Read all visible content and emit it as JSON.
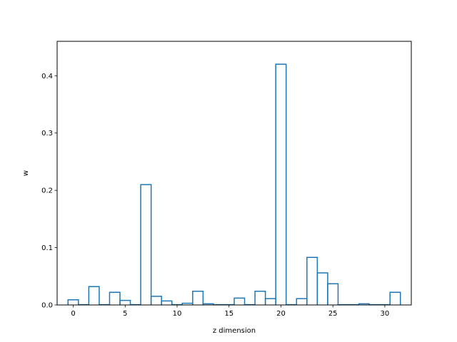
{
  "chart_data": {
    "type": "bar",
    "style": "step-histogram",
    "xlabel": "z dimension",
    "ylabel": "w",
    "xlim": [
      -1.55,
      32.55
    ],
    "ylim": [
      0,
      0.46
    ],
    "xticks": [
      0,
      5,
      10,
      15,
      20,
      25,
      30
    ],
    "yticks": [
      0.0,
      0.1,
      0.2,
      0.3,
      0.4
    ],
    "x": [
      0,
      1,
      2,
      3,
      4,
      5,
      6,
      7,
      8,
      9,
      10,
      11,
      12,
      13,
      14,
      15,
      16,
      17,
      18,
      19,
      20,
      21,
      22,
      23,
      24,
      25,
      26,
      27,
      28,
      29,
      30,
      31
    ],
    "values": [
      0.009,
      0.0005,
      0.032,
      0.0005,
      0.022,
      0.008,
      0.0005,
      0.21,
      0.015,
      0.007,
      0.0005,
      0.003,
      0.024,
      0.002,
      0.0005,
      0.0005,
      0.012,
      0.0005,
      0.024,
      0.011,
      0.42,
      0.0005,
      0.011,
      0.083,
      0.056,
      0.037,
      0.0005,
      0.0005,
      0.002,
      0.0005,
      0.0005,
      0.022
    ],
    "color": "#1f77b4",
    "grid": false
  }
}
